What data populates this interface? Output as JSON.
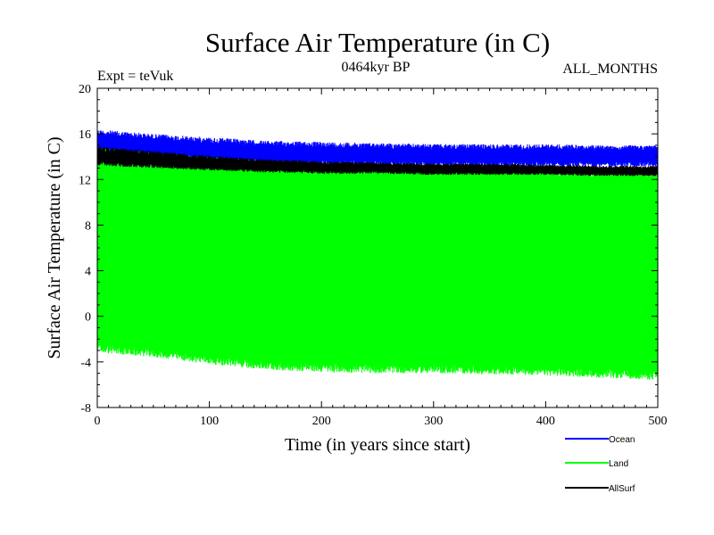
{
  "chart_data": {
    "type": "line",
    "title": "Surface Air Temperature (in C)",
    "subtitle": "0464kyr BP",
    "experiment_label": "Expt = teVuk",
    "months_label": "ALL_MONTHS",
    "xlabel": "Time (in years since start)",
    "ylabel": "Surface Air Temperature (in C)",
    "xlim": [
      0,
      500
    ],
    "ylim": [
      -8,
      20
    ],
    "x_ticks": [
      0,
      100,
      200,
      300,
      400,
      500
    ],
    "y_ticks": [
      -8,
      -4,
      0,
      4,
      8,
      12,
      16,
      20
    ],
    "grid": false,
    "legend_position": "bottom-right, outside plot",
    "series": [
      {
        "name": "Ocean",
        "color": "#0000ff",
        "envelope_x": [
          0,
          50,
          100,
          150,
          200,
          250,
          300,
          350,
          400,
          450,
          500
        ],
        "envelope_max": [
          16.4,
          16.0,
          15.7,
          15.4,
          15.3,
          15.2,
          15.1,
          15.1,
          15.1,
          15.0,
          15.0
        ],
        "envelope_min": [
          14.0,
          13.8,
          13.5,
          13.3,
          13.2,
          13.2,
          13.1,
          13.1,
          13.1,
          13.1,
          13.1
        ]
      },
      {
        "name": "Land",
        "color": "#00ff00",
        "envelope_x": [
          0,
          50,
          100,
          150,
          200,
          250,
          300,
          350,
          400,
          450,
          500
        ],
        "envelope_max": [
          14.8,
          14.4,
          14.0,
          13.6,
          13.5,
          13.3,
          13.2,
          13.2,
          13.1,
          13.0,
          13.0
        ],
        "envelope_min": [
          -3.2,
          -3.6,
          -4.2,
          -4.7,
          -4.9,
          -5.0,
          -5.0,
          -5.1,
          -5.2,
          -5.4,
          -5.6
        ]
      },
      {
        "name": "AllSurf",
        "color": "#000000",
        "envelope_x": [
          0,
          50,
          100,
          150,
          200,
          250,
          300,
          350,
          400,
          450,
          500
        ],
        "envelope_max": [
          14.9,
          14.5,
          14.1,
          13.8,
          13.6,
          13.5,
          13.4,
          13.4,
          13.3,
          13.2,
          13.2
        ],
        "envelope_min": [
          13.2,
          13.0,
          12.8,
          12.6,
          12.5,
          12.5,
          12.4,
          12.4,
          12.4,
          12.3,
          12.3
        ]
      }
    ]
  }
}
